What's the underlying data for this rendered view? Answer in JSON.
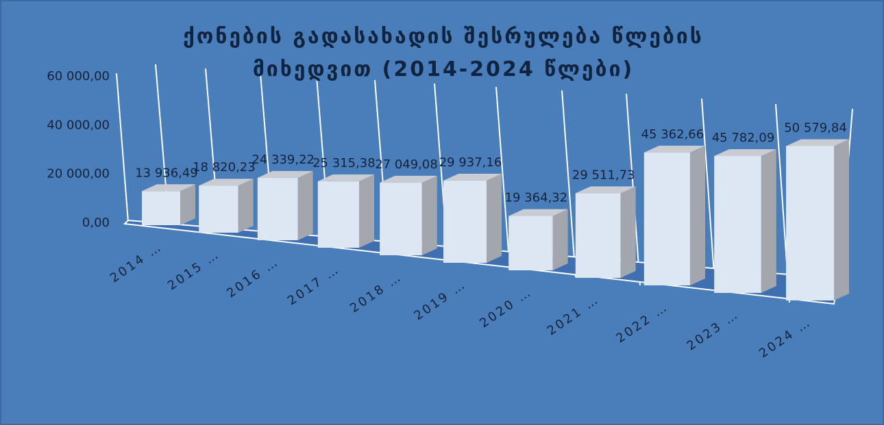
{
  "chart_data": {
    "type": "bar3d",
    "title": "ქონების გადასახადის შესრულება წლების მიხედვით (2014-2024 წლები)",
    "categories": [
      "2014 …",
      "2015 …",
      "2016 …",
      "2017 …",
      "2018 …",
      "2019 …",
      "2020 …",
      "2021 …",
      "2022 …",
      "2023 …",
      "2024 …"
    ],
    "values": [
      13936.49,
      18820.23,
      24339.22,
      25315.38,
      27049.08,
      29937.16,
      19364.32,
      29511.73,
      45362.66,
      45782.09,
      50579.84
    ],
    "value_labels": [
      "13 936,49",
      "18 820,23",
      "24 339,22",
      "25 315,38",
      "27 049,08",
      "29 937,16",
      "19 364,32",
      "29 511,73",
      "45 362,66",
      "45 782,09",
      "50 579,84"
    ],
    "color": "#dde6f3",
    "ylim": [
      0,
      60000
    ],
    "yticks": [
      {
        "value": 0,
        "label": "0,00"
      },
      {
        "value": 20000,
        "label": "20 000,00"
      },
      {
        "value": 40000,
        "label": "40 000,00"
      },
      {
        "value": 60000,
        "label": "60 000,00"
      }
    ]
  }
}
